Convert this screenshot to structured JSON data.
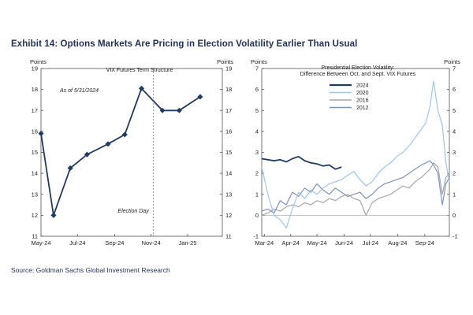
{
  "title": "Exhibit 14: Options Markets Are Pricing in Election Volatility Earlier Than Usual",
  "source": "Source: Goldman Sachs Global Investment Research",
  "chart_data": [
    {
      "type": "line",
      "title": "VIX Futures Term Structure",
      "ylabel_left": "Points",
      "ylabel_right": "Points",
      "ylim": [
        11,
        19
      ],
      "yticks": [
        11,
        12,
        13,
        14,
        15,
        16,
        17,
        18,
        19
      ],
      "xlim": [
        "2024-05-01",
        "2025-02-28"
      ],
      "xticks": [
        "May-24",
        "Jul-24",
        "Sep-24",
        "Nov-24",
        "Jan-25"
      ],
      "annotations": {
        "as_of": "As of 5/31/2024",
        "event": "Election Day"
      },
      "event_date": "2024-11-05",
      "color": "#1f3b63",
      "x": [
        "2024-05-01",
        "2024-05-22",
        "2024-06-19",
        "2024-07-17",
        "2024-08-21",
        "2024-09-18",
        "2024-10-16",
        "2024-11-20",
        "2024-12-18",
        "2025-01-22"
      ],
      "values": [
        15.9,
        12.0,
        14.25,
        14.9,
        15.4,
        15.85,
        18.05,
        17.0,
        17.0,
        17.65
      ]
    },
    {
      "type": "line",
      "title": "Presidential Election Volatility:",
      "subtitle": "Difference Between Oct. and Sept. VIX Futures",
      "ylabel_left": "Points",
      "ylabel_right": "Points",
      "ylim": [
        -1,
        7
      ],
      "yticks": [
        -1,
        0,
        1,
        2,
        3,
        4,
        5,
        6,
        7
      ],
      "xlim": [
        "2024-03-01",
        "2024-10-01"
      ],
      "xticks": [
        "Mar-24",
        "Apr-24",
        "May-24",
        "Jun-24",
        "Jul-24",
        "Aug-24",
        "Sep-24"
      ],
      "legend_position": "top-center",
      "series": [
        {
          "name": "2024",
          "color": "#1f3b63",
          "width": 1.8,
          "x": [
            "2024-03-01",
            "2024-03-08",
            "2024-03-15",
            "2024-03-22",
            "2024-03-29",
            "2024-04-05",
            "2024-04-12",
            "2024-04-19",
            "2024-04-26",
            "2024-05-03",
            "2024-05-10",
            "2024-05-17",
            "2024-05-24",
            "2024-05-31"
          ],
          "values": [
            2.7,
            2.65,
            2.6,
            2.65,
            2.55,
            2.7,
            2.8,
            2.6,
            2.5,
            2.45,
            2.35,
            2.4,
            2.2,
            2.3
          ]
        },
        {
          "name": "2020",
          "color": "#9ec6e8",
          "width": 1.2,
          "x": [
            "2024-03-01",
            "2024-03-08",
            "2024-03-15",
            "2024-03-22",
            "2024-03-29",
            "2024-04-05",
            "2024-04-12",
            "2024-04-19",
            "2024-04-26",
            "2024-05-03",
            "2024-05-10",
            "2024-05-17",
            "2024-05-24",
            "2024-05-31",
            "2024-06-07",
            "2024-06-14",
            "2024-06-21",
            "2024-06-28",
            "2024-07-05",
            "2024-07-12",
            "2024-07-19",
            "2024-07-26",
            "2024-08-02",
            "2024-08-09",
            "2024-08-16",
            "2024-08-23",
            "2024-08-30",
            "2024-09-04",
            "2024-09-09",
            "2024-09-13",
            "2024-09-18",
            "2024-09-23",
            "2024-09-27",
            "2024-10-01"
          ],
          "values": [
            2.3,
            1.0,
            0.0,
            -0.2,
            -0.6,
            0.3,
            1.1,
            0.8,
            1.2,
            1.0,
            1.3,
            1.5,
            1.6,
            1.7,
            1.9,
            2.1,
            1.7,
            1.4,
            1.6,
            2.0,
            2.3,
            2.5,
            2.8,
            3.0,
            3.3,
            3.7,
            4.1,
            4.4,
            5.2,
            6.4,
            5.0,
            4.3,
            2.5,
            1.6
          ]
        },
        {
          "name": "2016",
          "color": "#a6a6a6",
          "width": 1.2,
          "x": [
            "2024-03-01",
            "2024-03-08",
            "2024-03-15",
            "2024-03-22",
            "2024-03-29",
            "2024-04-05",
            "2024-04-12",
            "2024-04-19",
            "2024-04-26",
            "2024-05-03",
            "2024-05-10",
            "2024-05-17",
            "2024-05-24",
            "2024-05-31",
            "2024-06-07",
            "2024-06-14",
            "2024-06-21",
            "2024-06-28",
            "2024-07-05",
            "2024-07-12",
            "2024-07-19",
            "2024-07-26",
            "2024-08-02",
            "2024-08-09",
            "2024-08-16",
            "2024-08-23",
            "2024-08-30",
            "2024-09-04",
            "2024-09-09",
            "2024-09-13",
            "2024-09-18",
            "2024-09-23",
            "2024-09-27",
            "2024-10-01"
          ],
          "values": [
            0.0,
            0.1,
            0.3,
            0.2,
            0.4,
            0.5,
            0.4,
            0.6,
            0.5,
            0.7,
            0.6,
            0.8,
            0.7,
            0.9,
            1.0,
            0.8,
            0.7,
            0.0,
            0.6,
            0.8,
            0.9,
            1.0,
            1.2,
            1.4,
            1.3,
            1.6,
            1.8,
            2.0,
            2.2,
            2.5,
            2.3,
            1.0,
            1.8,
            2.0
          ]
        },
        {
          "name": "2012",
          "color": "#7f93bd",
          "width": 1.2,
          "x": [
            "2024-03-01",
            "2024-03-08",
            "2024-03-15",
            "2024-03-22",
            "2024-03-29",
            "2024-04-05",
            "2024-04-12",
            "2024-04-19",
            "2024-04-26",
            "2024-05-03",
            "2024-05-10",
            "2024-05-17",
            "2024-05-24",
            "2024-05-31",
            "2024-06-07",
            "2024-06-14",
            "2024-06-21",
            "2024-06-28",
            "2024-07-05",
            "2024-07-12",
            "2024-07-19",
            "2024-07-26",
            "2024-08-02",
            "2024-08-09",
            "2024-08-16",
            "2024-08-23",
            "2024-08-30",
            "2024-09-04",
            "2024-09-09",
            "2024-09-13",
            "2024-09-18",
            "2024-09-23",
            "2024-09-27",
            "2024-10-01"
          ],
          "values": [
            0.2,
            0.3,
            0.1,
            0.7,
            0.5,
            1.1,
            0.9,
            1.3,
            1.1,
            1.5,
            1.2,
            1.0,
            1.3,
            1.1,
            0.9,
            1.0,
            1.1,
            0.8,
            1.0,
            1.3,
            1.5,
            1.6,
            1.7,
            1.8,
            2.0,
            2.2,
            2.4,
            2.5,
            2.6,
            2.4,
            2.0,
            0.5,
            1.5,
            1.8
          ]
        }
      ]
    }
  ]
}
